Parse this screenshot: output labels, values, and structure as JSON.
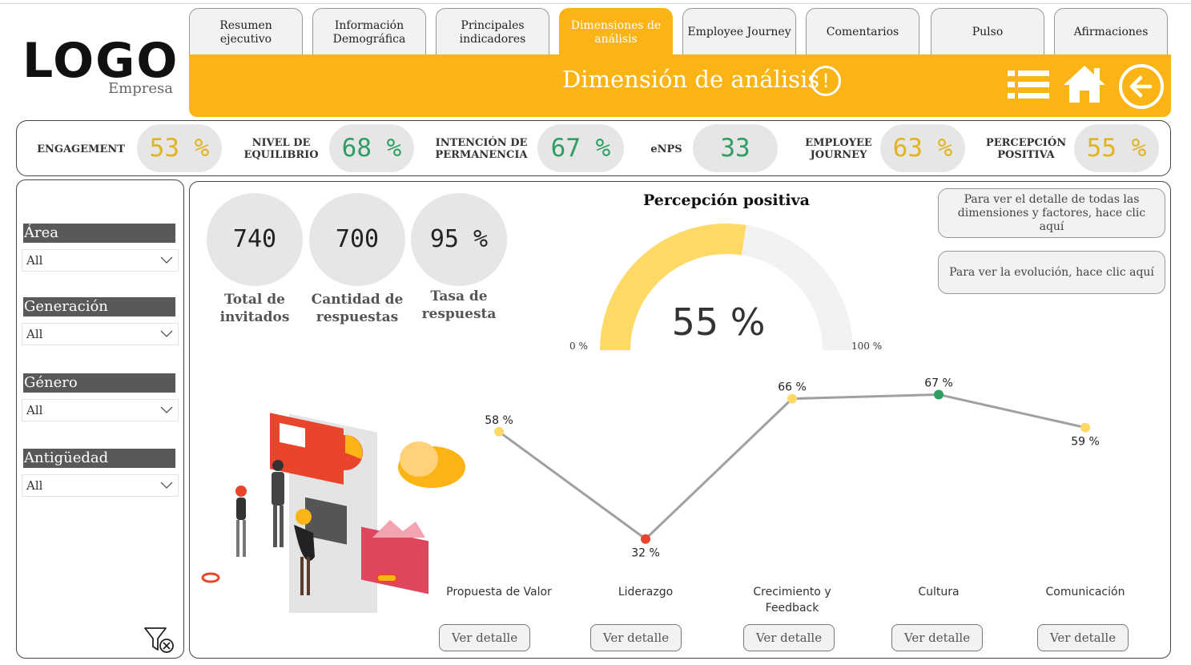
{
  "logo": {
    "word": "LOGO",
    "company": "Empresa"
  },
  "tabs": [
    {
      "label": "Resumen ejecutivo"
    },
    {
      "label": "Información Demográfica"
    },
    {
      "label": "Principales indicadores"
    },
    {
      "label": "Dimensiones de análisis"
    },
    {
      "label": "Employee Journey"
    },
    {
      "label": "Comentarios"
    },
    {
      "label": "Pulso"
    },
    {
      "label": "Afirmaciones"
    }
  ],
  "header": {
    "title": "Dimensión de análisis",
    "alert_glyph": "!"
  },
  "colors": {
    "accent": "#fbb416",
    "yellow": "#f5c518",
    "green": "#2e9e63",
    "red": "#e8452c",
    "gauge_fill": "#ffd966",
    "gauge_bg": "#f2f2f2"
  },
  "kpis": [
    {
      "label": "ENGAGEMENT",
      "value": "53 %",
      "color": "#e0b41f"
    },
    {
      "label": "NIVEL DE EQUILIBRIO",
      "value": "68 %",
      "color": "#2e9e63"
    },
    {
      "label": "INTENCIÓN DE PERMANENCIA",
      "value": "67 %",
      "color": "#2e9e63"
    },
    {
      "label": "eNPS",
      "value": "33",
      "color": "#2e9e63"
    },
    {
      "label": "EMPLOYEE JOURNEY",
      "value": "63 %",
      "color": "#e0b41f"
    },
    {
      "label": "PERCEPCIÓN POSITIVA",
      "value": "55 %",
      "color": "#e0b41f"
    }
  ],
  "filters": [
    {
      "label": "Área",
      "value": "All"
    },
    {
      "label": "Generación",
      "value": "All"
    },
    {
      "label": "Género",
      "value": "All"
    },
    {
      "label": "Antigüedad",
      "value": "All"
    }
  ],
  "stats": [
    {
      "value": "740",
      "label": "Total de invitados"
    },
    {
      "value": "700",
      "label": "Cantidad de respuestas"
    },
    {
      "value": "95 %",
      "label": "Tasa de respuesta"
    }
  ],
  "gauge": {
    "title": "Percepción positiva",
    "value": 55,
    "value_text": "55 %",
    "min_label": "0 %",
    "max_label": "100 %"
  },
  "links": {
    "detail_all": "Para ver el detalle de todas las dimensiones y factores, hace clic aquí",
    "evolution": "Para ver la evolución, hace clic aquí"
  },
  "chart_data": {
    "type": "line",
    "categories": [
      "Propuesta de Valor",
      "Liderazgo",
      "Crecimiento y Feedback",
      "Cultura",
      "Comunicación"
    ],
    "values": [
      58,
      32,
      66,
      67,
      59
    ],
    "data_labels": [
      "58 %",
      "32 %",
      "66 %",
      "67 %",
      "59 %"
    ],
    "point_colors": [
      "#ffd966",
      "#e8452c",
      "#ffd966",
      "#2e9e63",
      "#ffd966"
    ],
    "line_color": "#a0a0a0",
    "grid": false
  },
  "detail_button_label": "Ver detalle"
}
